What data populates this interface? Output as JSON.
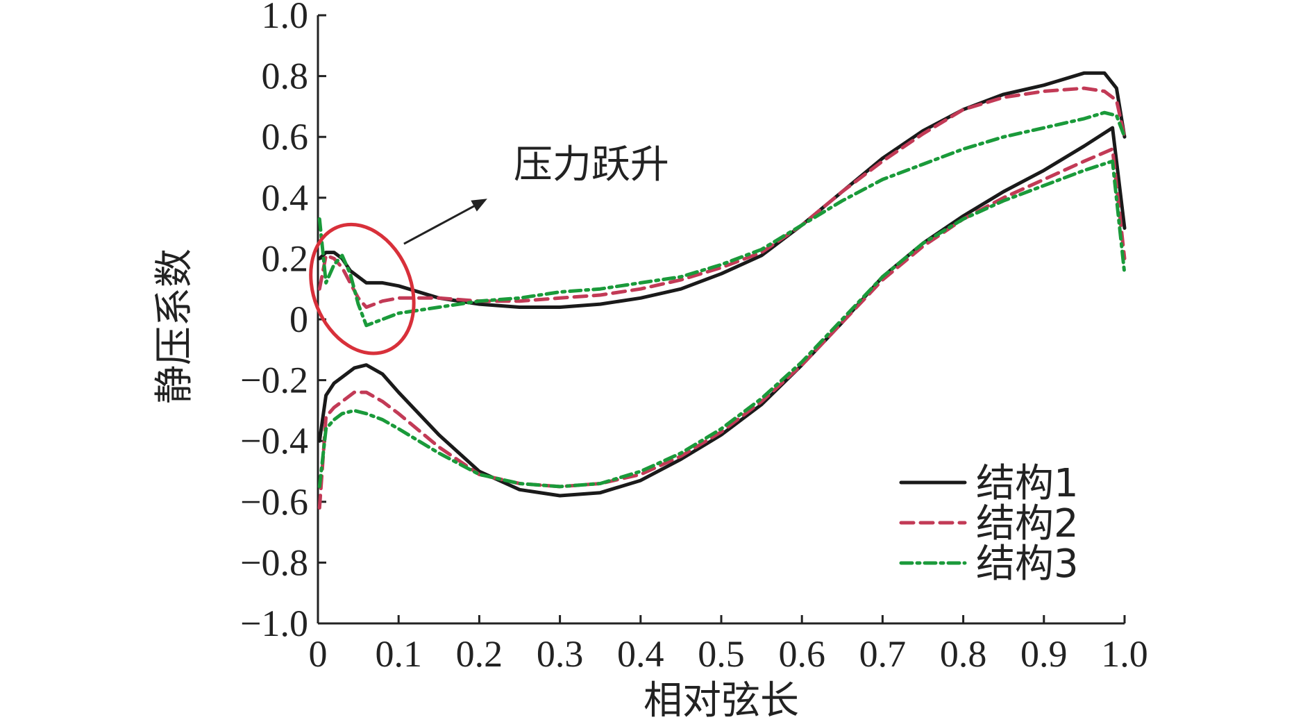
{
  "chart_data": {
    "type": "line",
    "title": "",
    "xlabel": "相对弦长",
    "ylabel": "静压系数",
    "xlim": [
      0,
      1.0
    ],
    "ylim": [
      -1.0,
      1.0
    ],
    "grid": false,
    "legend_position": "bottom-right",
    "x_ticks": [
      "0",
      "0.1",
      "0.2",
      "0.3",
      "0.4",
      "0.5",
      "0.6",
      "0.7",
      "0.8",
      "0.9",
      "1.0"
    ],
    "y_ticks": [
      "−1.0",
      "−0.8",
      "−0.6",
      "−0.4",
      "−0.2",
      "0",
      "0.2",
      "0.4",
      "0.6",
      "0.8",
      "1.0"
    ],
    "annotation": {
      "text": "压力跃升",
      "target_x": 0.055,
      "target_y": 0.1
    },
    "series": [
      {
        "name": "结构1",
        "color": "#1a1a1a",
        "style": "solid",
        "upper": {
          "x": [
            0.002,
            0.01,
            0.02,
            0.03,
            0.04,
            0.06,
            0.08,
            0.1,
            0.15,
            0.2,
            0.25,
            0.3,
            0.35,
            0.4,
            0.45,
            0.5,
            0.55,
            0.6,
            0.65,
            0.7,
            0.75,
            0.8,
            0.85,
            0.9,
            0.95,
            0.975,
            0.99,
            1.0
          ],
          "y": [
            0.2,
            0.22,
            0.22,
            0.2,
            0.16,
            0.12,
            0.12,
            0.11,
            0.07,
            0.05,
            0.04,
            0.04,
            0.05,
            0.07,
            0.1,
            0.15,
            0.21,
            0.31,
            0.42,
            0.53,
            0.62,
            0.69,
            0.74,
            0.77,
            0.81,
            0.81,
            0.76,
            0.6
          ]
        },
        "lower": {
          "x": [
            0.002,
            0.01,
            0.02,
            0.03,
            0.045,
            0.06,
            0.08,
            0.1,
            0.15,
            0.2,
            0.25,
            0.3,
            0.35,
            0.4,
            0.45,
            0.5,
            0.55,
            0.6,
            0.65,
            0.7,
            0.75,
            0.8,
            0.85,
            0.9,
            0.95,
            0.985,
            1.0
          ],
          "y": [
            -0.4,
            -0.25,
            -0.21,
            -0.19,
            -0.16,
            -0.15,
            -0.18,
            -0.24,
            -0.38,
            -0.5,
            -0.56,
            -0.58,
            -0.57,
            -0.53,
            -0.46,
            -0.38,
            -0.28,
            -0.15,
            -0.01,
            0.14,
            0.25,
            0.34,
            0.42,
            0.49,
            0.57,
            0.63,
            0.3
          ]
        }
      },
      {
        "name": "结构2",
        "color": "#c23a56",
        "style": "dashed",
        "upper": {
          "x": [
            0.002,
            0.01,
            0.02,
            0.03,
            0.04,
            0.05,
            0.06,
            0.08,
            0.1,
            0.15,
            0.2,
            0.25,
            0.3,
            0.35,
            0.4,
            0.45,
            0.5,
            0.55,
            0.6,
            0.65,
            0.7,
            0.75,
            0.8,
            0.85,
            0.9,
            0.95,
            0.975,
            0.99,
            1.0
          ],
          "y": [
            0.1,
            0.21,
            0.2,
            0.17,
            0.12,
            0.07,
            0.04,
            0.06,
            0.07,
            0.07,
            0.06,
            0.06,
            0.07,
            0.08,
            0.1,
            0.13,
            0.17,
            0.22,
            0.31,
            0.42,
            0.52,
            0.61,
            0.69,
            0.73,
            0.75,
            0.76,
            0.75,
            0.72,
            0.6
          ]
        },
        "lower": {
          "x": [
            0.002,
            0.01,
            0.02,
            0.03,
            0.045,
            0.06,
            0.08,
            0.1,
            0.15,
            0.2,
            0.25,
            0.3,
            0.35,
            0.4,
            0.45,
            0.5,
            0.55,
            0.6,
            0.65,
            0.7,
            0.75,
            0.8,
            0.85,
            0.9,
            0.95,
            0.985,
            1.0
          ],
          "y": [
            -0.62,
            -0.32,
            -0.29,
            -0.27,
            -0.24,
            -0.24,
            -0.27,
            -0.31,
            -0.42,
            -0.51,
            -0.54,
            -0.55,
            -0.54,
            -0.51,
            -0.45,
            -0.37,
            -0.27,
            -0.15,
            -0.01,
            0.13,
            0.24,
            0.33,
            0.4,
            0.46,
            0.52,
            0.56,
            0.2
          ]
        }
      },
      {
        "name": "结构3",
        "color": "#1a9a3a",
        "style": "dashdot",
        "upper": {
          "x": [
            0.002,
            0.01,
            0.02,
            0.03,
            0.04,
            0.05,
            0.06,
            0.08,
            0.1,
            0.15,
            0.2,
            0.25,
            0.3,
            0.35,
            0.4,
            0.45,
            0.5,
            0.55,
            0.6,
            0.65,
            0.7,
            0.75,
            0.8,
            0.85,
            0.9,
            0.95,
            0.975,
            0.99,
            1.0
          ],
          "y": [
            0.33,
            0.12,
            0.18,
            0.21,
            0.15,
            0.05,
            -0.02,
            0.0,
            0.02,
            0.04,
            0.06,
            0.07,
            0.09,
            0.1,
            0.12,
            0.14,
            0.18,
            0.23,
            0.31,
            0.39,
            0.46,
            0.51,
            0.56,
            0.6,
            0.63,
            0.66,
            0.68,
            0.67,
            0.6
          ]
        },
        "lower": {
          "x": [
            0.002,
            0.01,
            0.02,
            0.03,
            0.045,
            0.06,
            0.08,
            0.1,
            0.15,
            0.2,
            0.25,
            0.3,
            0.35,
            0.4,
            0.45,
            0.5,
            0.55,
            0.6,
            0.65,
            0.7,
            0.75,
            0.8,
            0.85,
            0.9,
            0.95,
            0.985,
            1.0
          ],
          "y": [
            -0.55,
            -0.36,
            -0.33,
            -0.31,
            -0.3,
            -0.31,
            -0.33,
            -0.36,
            -0.44,
            -0.51,
            -0.54,
            -0.55,
            -0.54,
            -0.5,
            -0.44,
            -0.36,
            -0.26,
            -0.14,
            0.0,
            0.14,
            0.25,
            0.33,
            0.39,
            0.44,
            0.49,
            0.52,
            0.15
          ]
        }
      }
    ]
  }
}
